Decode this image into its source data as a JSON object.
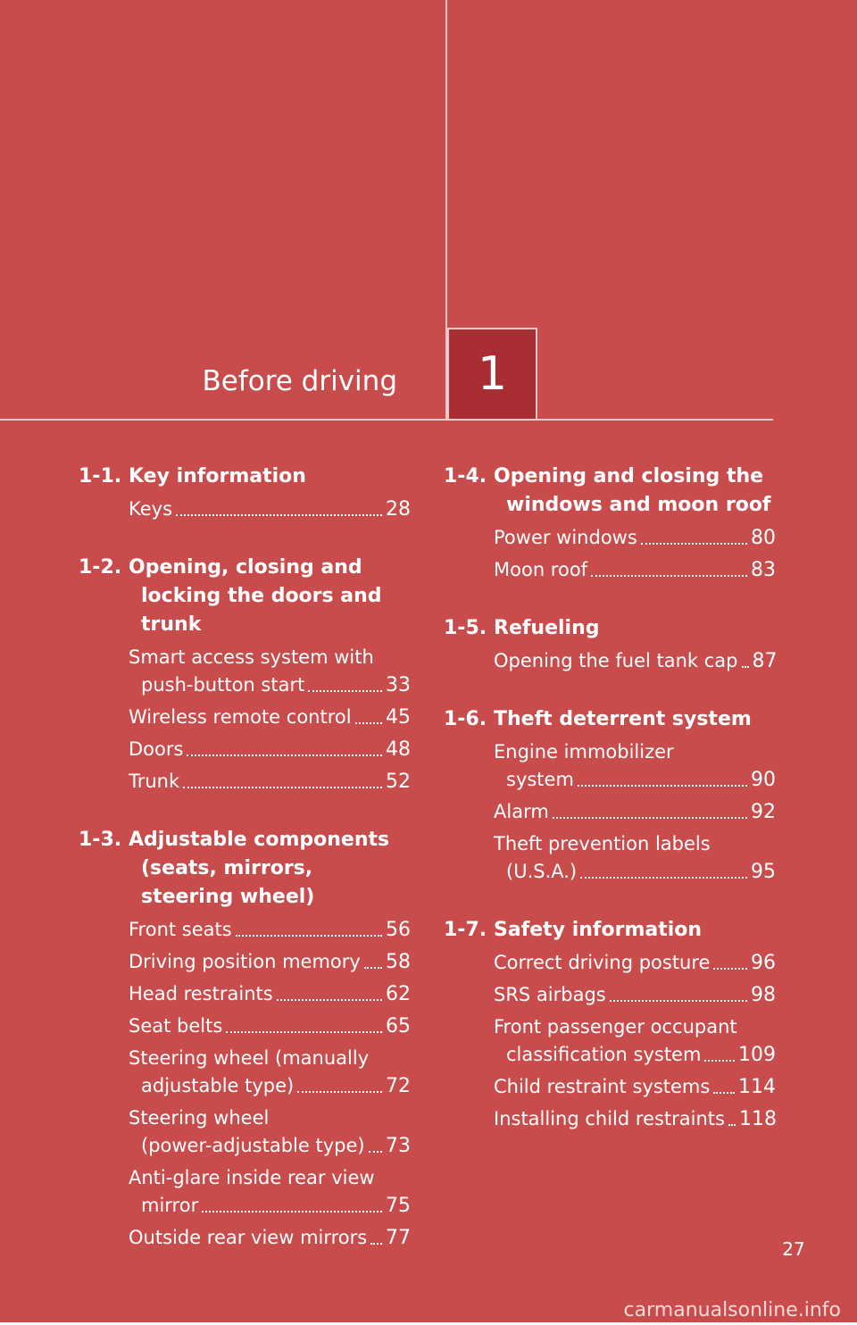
{
  "header": {
    "chapter_title": "Before driving",
    "chapter_number": "1"
  },
  "left_sections": [
    {
      "num": "1-1.",
      "title": [
        "Key information"
      ],
      "entries": [
        {
          "lines": [
            "Keys"
          ],
          "page": "28"
        }
      ]
    },
    {
      "num": "1-2.",
      "title": [
        "Opening, closing and",
        "locking the doors and",
        "trunk"
      ],
      "entries": [
        {
          "lines": [
            "Smart access system with",
            "push-button start"
          ],
          "page": "33"
        },
        {
          "lines": [
            "Wireless remote control"
          ],
          "page": "45"
        },
        {
          "lines": [
            "Doors"
          ],
          "page": "48"
        },
        {
          "lines": [
            "Trunk"
          ],
          "page": "52"
        }
      ]
    },
    {
      "num": "1-3.",
      "title": [
        "Adjustable components",
        "(seats, mirrors,",
        "steering wheel)"
      ],
      "entries": [
        {
          "lines": [
            "Front seats"
          ],
          "page": "56"
        },
        {
          "lines": [
            "Driving position memory"
          ],
          "page": "58"
        },
        {
          "lines": [
            "Head restraints"
          ],
          "page": "62"
        },
        {
          "lines": [
            "Seat belts"
          ],
          "page": "65"
        },
        {
          "lines": [
            "Steering wheel (manually",
            "adjustable type)"
          ],
          "page": "72"
        },
        {
          "lines": [
            "Steering wheel",
            "(power-adjustable type)"
          ],
          "page": "73"
        },
        {
          "lines": [
            "Anti-glare inside rear view",
            "mirror"
          ],
          "page": "75"
        },
        {
          "lines": [
            "Outside rear view mirrors"
          ],
          "page": "77"
        }
      ]
    }
  ],
  "right_sections": [
    {
      "num": "1-4.",
      "title": [
        "Opening and closing the",
        "windows and moon roof"
      ],
      "entries": [
        {
          "lines": [
            "Power windows"
          ],
          "page": "80"
        },
        {
          "lines": [
            "Moon roof"
          ],
          "page": "83"
        }
      ]
    },
    {
      "num": "1-5.",
      "title": [
        "Refueling"
      ],
      "entries": [
        {
          "lines": [
            "Opening the fuel tank cap"
          ],
          "page": "87"
        }
      ]
    },
    {
      "num": "1-6.",
      "title": [
        "Theft deterrent system"
      ],
      "entries": [
        {
          "lines": [
            "Engine immobilizer",
            "system"
          ],
          "page": "90"
        },
        {
          "lines": [
            "Alarm"
          ],
          "page": "92"
        },
        {
          "lines": [
            "Theft prevention labels",
            "(U.S.A.)"
          ],
          "page": "95"
        }
      ]
    },
    {
      "num": "1-7.",
      "title": [
        "Safety information"
      ],
      "entries": [
        {
          "lines": [
            "Correct driving posture"
          ],
          "page": "96"
        },
        {
          "lines": [
            "SRS airbags"
          ],
          "page": "98"
        },
        {
          "lines": [
            "Front passenger occupant",
            "classification system"
          ],
          "page": "109"
        },
        {
          "lines": [
            "Child restraint systems"
          ],
          "page": "114"
        },
        {
          "lines": [
            "Installing child restraints"
          ],
          "page": "118"
        }
      ]
    }
  ],
  "footer": {
    "page_number": "27",
    "watermark": "carmanualsonline.info"
  }
}
